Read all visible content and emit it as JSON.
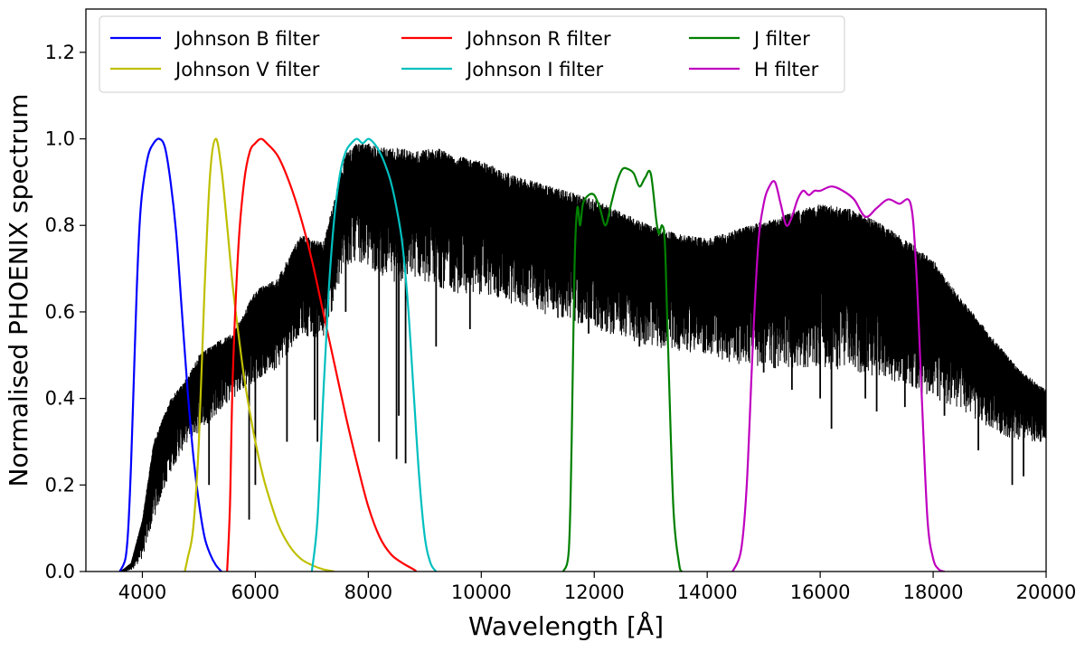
{
  "chart_data": {
    "type": "line",
    "title": "",
    "xlabel": "Wavelength [Å]",
    "ylabel": "Normalised PHOENIX spectrum",
    "xlim": [
      3000,
      20000
    ],
    "ylim": [
      0.0,
      1.3
    ],
    "x_ticks": [
      4000,
      6000,
      8000,
      10000,
      12000,
      14000,
      16000,
      18000,
      20000
    ],
    "x_tick_labels": [
      "4000",
      "6000",
      "8000",
      "10000",
      "12000",
      "14000",
      "16000",
      "18000",
      "20000"
    ],
    "y_ticks": [
      0.0,
      0.2,
      0.4,
      0.6,
      0.8,
      1.0,
      1.2
    ],
    "y_tick_labels": [
      "0.0",
      "0.2",
      "0.4",
      "0.6",
      "0.8",
      "1.0",
      "1.2"
    ],
    "grid": false,
    "legend": {
      "placement": "top-left",
      "columns": 3,
      "entries": [
        {
          "label": "Johnson B filter",
          "color": "#0000ff"
        },
        {
          "label": "Johnson V filter",
          "color": "#bfbf00"
        },
        {
          "label": "Johnson R filter",
          "color": "#ff0000"
        },
        {
          "label": "Johnson I filter",
          "color": "#00bfbf"
        },
        {
          "label": "J filter",
          "color": "#008000"
        },
        {
          "label": "H filter",
          "color": "#bf00bf"
        }
      ]
    },
    "spectrum": {
      "name": "PHOENIX spectrum",
      "color": "#000000",
      "envelope_upper": {
        "x": [
          3600,
          3800,
          4000,
          4200,
          4500,
          4800,
          5000,
          5300,
          5600,
          6000,
          6400,
          6800,
          7200,
          7400,
          7600,
          7800,
          8000,
          8300,
          8600,
          8800,
          9200,
          9600,
          10000,
          10500,
          11000,
          11500,
          12000,
          12500,
          13000,
          13500,
          14000,
          14500,
          15000,
          15500,
          16000,
          16500,
          17000,
          17500,
          18000,
          18500,
          19000,
          19500,
          20000
        ],
        "y": [
          0.0,
          0.02,
          0.12,
          0.3,
          0.4,
          0.45,
          0.5,
          0.53,
          0.55,
          0.65,
          0.68,
          0.78,
          0.76,
          0.86,
          0.97,
          0.99,
          0.99,
          0.98,
          0.98,
          0.97,
          0.98,
          0.96,
          0.95,
          0.92,
          0.9,
          0.88,
          0.86,
          0.83,
          0.8,
          0.78,
          0.77,
          0.79,
          0.81,
          0.83,
          0.85,
          0.84,
          0.81,
          0.77,
          0.72,
          0.63,
          0.55,
          0.47,
          0.42
        ]
      },
      "envelope_lower": {
        "x": [
          3600,
          3800,
          4000,
          4200,
          4500,
          4800,
          5000,
          5300,
          5600,
          6000,
          6400,
          6800,
          7200,
          7400,
          7600,
          7800,
          8000,
          8300,
          8600,
          8800,
          9200,
          9600,
          10000,
          10500,
          11000,
          11500,
          12000,
          12500,
          13000,
          13500,
          14000,
          14500,
          15000,
          15500,
          16000,
          16500,
          17000,
          17500,
          18000,
          18500,
          19000,
          19500,
          20000
        ],
        "y": [
          0.0,
          0.0,
          0.03,
          0.12,
          0.23,
          0.3,
          0.32,
          0.36,
          0.4,
          0.44,
          0.47,
          0.55,
          0.53,
          0.62,
          0.7,
          0.72,
          0.7,
          0.68,
          0.66,
          0.68,
          0.66,
          0.64,
          0.64,
          0.62,
          0.6,
          0.58,
          0.56,
          0.54,
          0.52,
          0.51,
          0.5,
          0.48,
          0.47,
          0.47,
          0.47,
          0.46,
          0.45,
          0.43,
          0.4,
          0.37,
          0.33,
          0.3,
          0.3
        ]
      },
      "deep_lines": [
        {
          "x": 5180,
          "y": 0.2
        },
        {
          "x": 5890,
          "y": 0.12
        },
        {
          "x": 6000,
          "y": 0.2
        },
        {
          "x": 6560,
          "y": 0.3
        },
        {
          "x": 7050,
          "y": 0.35
        },
        {
          "x": 7100,
          "y": 0.3
        },
        {
          "x": 7600,
          "y": 0.6
        },
        {
          "x": 8190,
          "y": 0.3
        },
        {
          "x": 8500,
          "y": 0.26
        },
        {
          "x": 8540,
          "y": 0.36
        },
        {
          "x": 8660,
          "y": 0.25
        },
        {
          "x": 9200,
          "y": 0.52
        },
        {
          "x": 9800,
          "y": 0.56
        },
        {
          "x": 11900,
          "y": 0.55
        },
        {
          "x": 12800,
          "y": 0.52
        },
        {
          "x": 13300,
          "y": 0.6
        },
        {
          "x": 15000,
          "y": 0.46
        },
        {
          "x": 15200,
          "y": 0.47
        },
        {
          "x": 15500,
          "y": 0.42
        },
        {
          "x": 16000,
          "y": 0.4
        },
        {
          "x": 16200,
          "y": 0.33
        },
        {
          "x": 16800,
          "y": 0.4
        },
        {
          "x": 17000,
          "y": 0.37
        },
        {
          "x": 17500,
          "y": 0.38
        },
        {
          "x": 17800,
          "y": 0.41
        },
        {
          "x": 18200,
          "y": 0.36
        },
        {
          "x": 18800,
          "y": 0.28
        },
        {
          "x": 19400,
          "y": 0.2
        },
        {
          "x": 19600,
          "y": 0.22
        },
        {
          "x": 19900,
          "y": 0.3
        }
      ]
    },
    "series": [
      {
        "name": "Johnson B filter",
        "color": "#0000ff",
        "x": [
          3600,
          3700,
          3750,
          3800,
          3850,
          3900,
          3950,
          4000,
          4100,
          4200,
          4300,
          4400,
          4500,
          4600,
          4700,
          4800,
          4900,
          5000,
          5100,
          5200,
          5300,
          5400
        ],
        "values": [
          0.0,
          0.03,
          0.1,
          0.25,
          0.45,
          0.65,
          0.8,
          0.88,
          0.96,
          0.99,
          1.0,
          0.98,
          0.9,
          0.78,
          0.6,
          0.42,
          0.27,
          0.16,
          0.08,
          0.04,
          0.015,
          0.0
        ]
      },
      {
        "name": "Johnson V filter",
        "color": "#bfbf00",
        "x": [
          4750,
          4800,
          4900,
          5000,
          5100,
          5200,
          5300,
          5400,
          5500,
          5600,
          5700,
          5800,
          5900,
          6000,
          6100,
          6200,
          6400,
          6600,
          6800,
          7000,
          7200,
          7400
        ],
        "values": [
          0.0,
          0.03,
          0.1,
          0.3,
          0.65,
          0.92,
          1.0,
          0.93,
          0.8,
          0.66,
          0.55,
          0.45,
          0.37,
          0.3,
          0.24,
          0.19,
          0.11,
          0.06,
          0.03,
          0.015,
          0.005,
          0.0
        ]
      },
      {
        "name": "Johnson R filter",
        "color": "#ff0000",
        "x": [
          5500,
          5550,
          5600,
          5700,
          5800,
          5900,
          6000,
          6100,
          6200,
          6400,
          6600,
          6800,
          7000,
          7200,
          7400,
          7600,
          7800,
          8000,
          8200,
          8400,
          8600,
          8800,
          8850
        ],
        "values": [
          0.0,
          0.15,
          0.45,
          0.75,
          0.9,
          0.97,
          0.99,
          1.0,
          0.99,
          0.96,
          0.9,
          0.82,
          0.72,
          0.6,
          0.48,
          0.36,
          0.25,
          0.15,
          0.08,
          0.04,
          0.02,
          0.005,
          0.0
        ]
      },
      {
        "name": "Johnson I filter",
        "color": "#00bfbf",
        "x": [
          7000,
          7100,
          7200,
          7300,
          7400,
          7500,
          7600,
          7700,
          7800,
          7900,
          8000,
          8100,
          8200,
          8300,
          8400,
          8500,
          8600,
          8700,
          8800,
          8900,
          9000,
          9100,
          9200
        ],
        "values": [
          0.0,
          0.12,
          0.4,
          0.65,
          0.82,
          0.92,
          0.97,
          0.99,
          1.0,
          0.99,
          1.0,
          0.99,
          0.97,
          0.94,
          0.9,
          0.84,
          0.76,
          0.62,
          0.42,
          0.22,
          0.08,
          0.02,
          0.0
        ]
      },
      {
        "name": "J filter",
        "color": "#008000",
        "x": [
          11450,
          11550,
          11600,
          11650,
          11700,
          11750,
          11800,
          11900,
          12000,
          12100,
          12200,
          12300,
          12400,
          12500,
          12600,
          12700,
          12800,
          12900,
          13000,
          13100,
          13150,
          13200,
          13250,
          13300,
          13400,
          13500,
          13550
        ],
        "values": [
          0.0,
          0.05,
          0.3,
          0.7,
          0.84,
          0.8,
          0.85,
          0.87,
          0.87,
          0.84,
          0.8,
          0.85,
          0.9,
          0.93,
          0.93,
          0.92,
          0.89,
          0.91,
          0.92,
          0.81,
          0.78,
          0.8,
          0.76,
          0.55,
          0.15,
          0.02,
          0.0
        ]
      },
      {
        "name": "H filter",
        "color": "#bf00bf",
        "x": [
          14450,
          14600,
          14700,
          14800,
          14900,
          15000,
          15100,
          15200,
          15300,
          15400,
          15500,
          15600,
          15700,
          15800,
          15900,
          16000,
          16200,
          16400,
          16600,
          16800,
          17000,
          17200,
          17400,
          17600,
          17700,
          17800,
          17900,
          18000,
          18100,
          18200
        ],
        "values": [
          0.0,
          0.05,
          0.2,
          0.5,
          0.75,
          0.85,
          0.89,
          0.9,
          0.85,
          0.8,
          0.82,
          0.86,
          0.88,
          0.87,
          0.88,
          0.88,
          0.89,
          0.88,
          0.86,
          0.82,
          0.84,
          0.86,
          0.85,
          0.85,
          0.7,
          0.4,
          0.12,
          0.03,
          0.005,
          0.0
        ]
      }
    ]
  }
}
